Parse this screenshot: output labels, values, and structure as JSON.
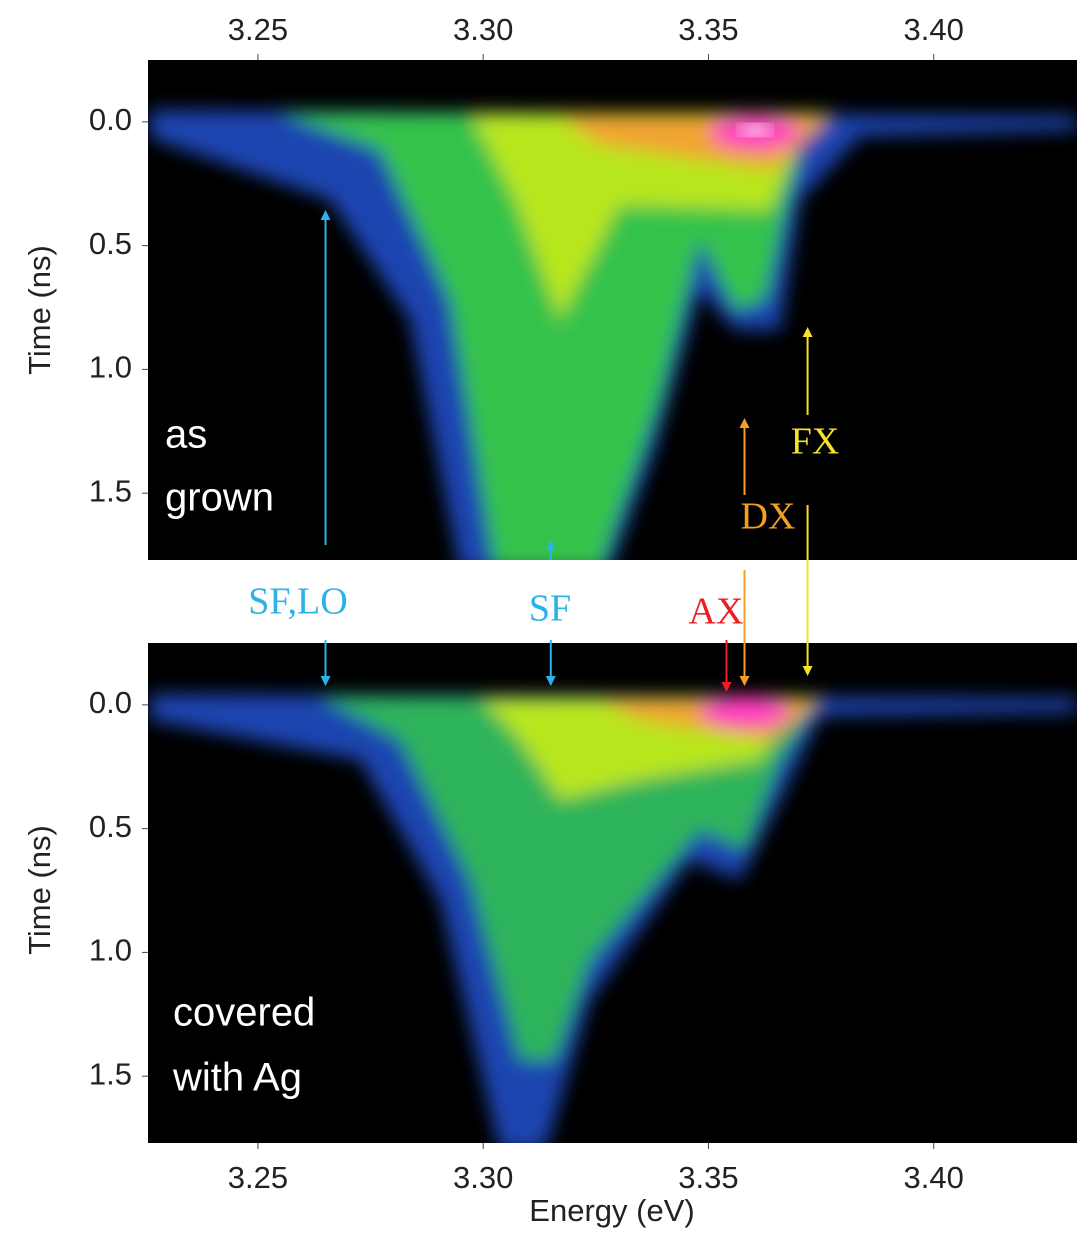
{
  "chart_data": {
    "type": "heatmap",
    "x_label": "Energy (eV)",
    "y_label": "Time (ns)",
    "xlim": [
      3.2256,
      3.4318
    ],
    "xticks": [
      3.25,
      {
        "value": 3.3,
        "label": "3.30"
      },
      3.35,
      {
        "value": 3.4,
        "label": "3.40"
      }
    ],
    "ylim": [
      -0.25,
      1.77
    ],
    "yticks": [
      {
        "value": 0,
        "label": "0.0"
      },
      0.5,
      {
        "value": 1,
        "label": "1.0"
      },
      1.5
    ],
    "panels": [
      {
        "label": [
          "as",
          "grown"
        ]
      },
      {
        "label": [
          "covered",
          "with Ag"
        ]
      }
    ],
    "annotations": [
      {
        "text": "SF,LO",
        "x": 3.265,
        "color": "#2bb3e6"
      },
      {
        "text": "SF",
        "x": 3.315,
        "color": "#2bb3e6"
      },
      {
        "text": "AX",
        "x": 3.354,
        "color": "#ee1c24"
      },
      {
        "text": "DX",
        "x": 3.358,
        "color": "#f2a11f"
      },
      {
        "text": "FX",
        "x": 3.372,
        "color": "#f6e12a"
      }
    ]
  }
}
